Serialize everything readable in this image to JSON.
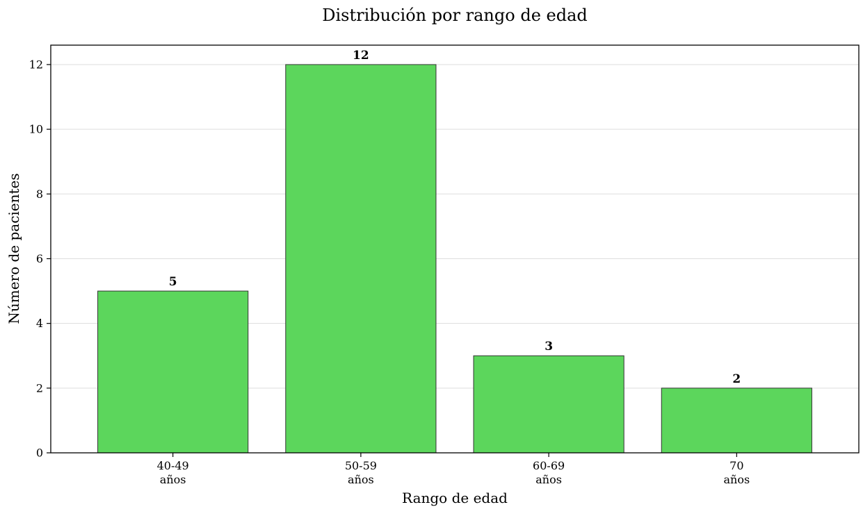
{
  "chart_data": {
    "type": "bar",
    "title": "Distribución por rango de edad",
    "xlabel": "Rango de edad",
    "ylabel": "Número de pacientes",
    "categories": [
      [
        "40-49",
        "años"
      ],
      [
        "50-59",
        "años"
      ],
      [
        "60-69",
        "años"
      ],
      [
        "70",
        "años"
      ]
    ],
    "values": [
      5,
      12,
      3,
      2
    ],
    "data_labels": [
      "5",
      "12",
      "3",
      "2"
    ],
    "ylim": [
      0,
      12.6
    ],
    "yticks": [
      0,
      2,
      4,
      6,
      8,
      10,
      12
    ],
    "grid": "horizontal",
    "bar_color": "#5cd65c",
    "bar_edge_color": "#333333"
  }
}
